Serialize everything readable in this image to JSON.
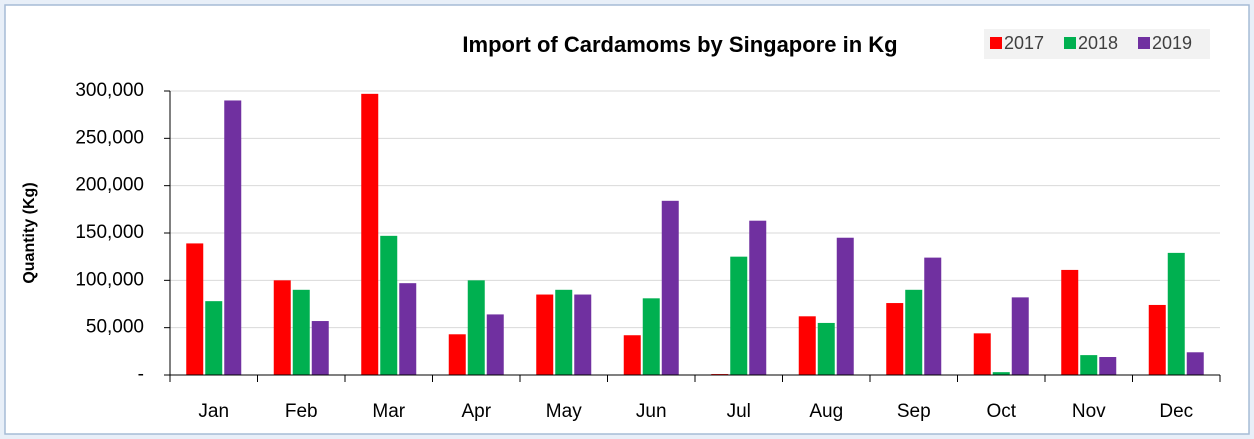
{
  "chart_data": {
    "type": "bar",
    "title": "Import of Cardamoms by Singapore in Kg",
    "y_label": "Quantity (Kg)",
    "categories": [
      "Jan",
      "Feb",
      "Mar",
      "Apr",
      "May",
      "Jun",
      "Jul",
      "Aug",
      "Sep",
      "Oct",
      "Nov",
      "Dec"
    ],
    "series": [
      {
        "name": "2017",
        "color": "#ff0000",
        "values": [
          139000,
          100000,
          297000,
          43000,
          85000,
          42000,
          1000,
          62000,
          76000,
          44000,
          111000,
          74000
        ]
      },
      {
        "name": "2018",
        "color": "#00b050",
        "values": [
          78000,
          90000,
          147000,
          100000,
          90000,
          81000,
          125000,
          55000,
          90000,
          3000,
          21000,
          129000
        ]
      },
      {
        "name": "2019",
        "color": "#7030a0",
        "values": [
          290000,
          57000,
          97000,
          64000,
          85000,
          184000,
          163000,
          145000,
          124000,
          82000,
          19000,
          24000
        ]
      }
    ],
    "ylim": [
      0,
      300000
    ],
    "yticks": [
      {
        "value": 0,
        "label": "-"
      },
      {
        "value": 50000,
        "label": "50,000"
      },
      {
        "value": 100000,
        "label": "100,000"
      },
      {
        "value": 150000,
        "label": "150,000"
      },
      {
        "value": 200000,
        "label": "200,000"
      },
      {
        "value": 250000,
        "label": "250,000"
      },
      {
        "value": 300000,
        "label": "300,000"
      }
    ],
    "grid": true,
    "legend": "top-right"
  }
}
